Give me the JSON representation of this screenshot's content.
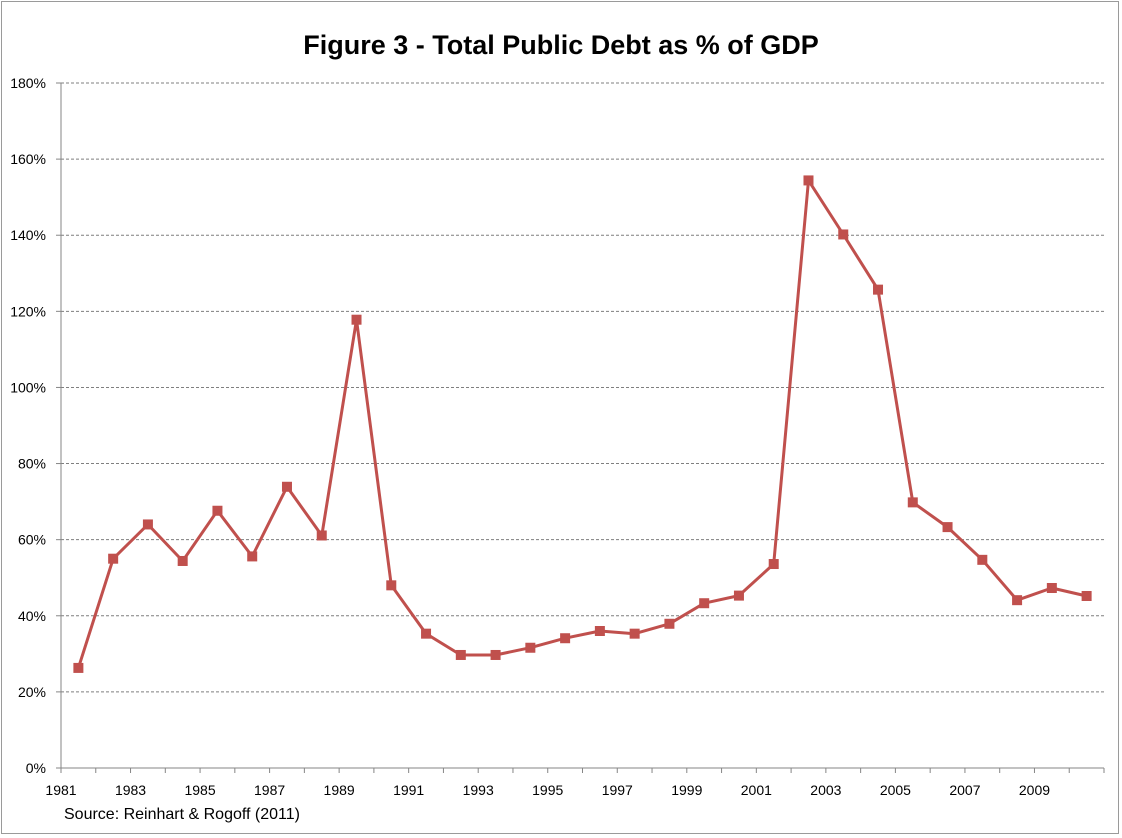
{
  "chart_data": {
    "type": "line",
    "title": "Figure 3 - Total Public Debt as % of GDP",
    "source": "Source: Reinhart & Rogoff (2011)",
    "xlabel": "",
    "ylabel": "",
    "ylim": [
      0,
      180
    ],
    "y_ticks": [
      "0%",
      "20%",
      "40%",
      "60%",
      "80%",
      "100%",
      "120%",
      "140%",
      "160%",
      "180%"
    ],
    "x_tick_labels": [
      "1981",
      "1983",
      "1985",
      "1987",
      "1989",
      "1991",
      "1993",
      "1995",
      "1997",
      "1999",
      "2001",
      "2003",
      "2005",
      "2007",
      "2009"
    ],
    "grid": true,
    "legend": "none",
    "series_color": "#c0504d",
    "x": [
      1981,
      1982,
      1983,
      1984,
      1985,
      1986,
      1987,
      1988,
      1989,
      1990,
      1991,
      1992,
      1993,
      1994,
      1995,
      1996,
      1997,
      1998,
      1999,
      2000,
      2001,
      2002,
      2003,
      2004,
      2005,
      2006,
      2007,
      2008,
      2009,
      2010
    ],
    "values": [
      26.3,
      55,
      64,
      54.4,
      67.6,
      55.6,
      73.9,
      61.1,
      117.8,
      48,
      35.3,
      29.7,
      29.7,
      31.6,
      34.1,
      36,
      35.3,
      37.9,
      43.3,
      45.3,
      53.6,
      154.4,
      140.2,
      125.7,
      69.8,
      63.3,
      54.7,
      44.1,
      47.3,
      45.2
    ]
  }
}
